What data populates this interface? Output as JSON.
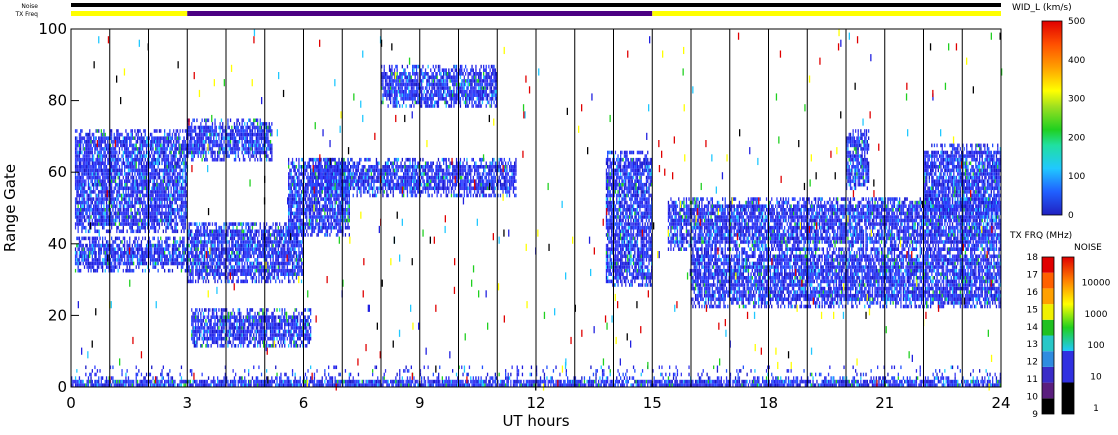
{
  "chart_data": {
    "type": "heatmap",
    "xlabel": "UT hours",
    "ylabel": "Range Gate",
    "xlim": [
      0,
      24
    ],
    "ylim": [
      0,
      100
    ],
    "x_ticks": [
      "0",
      "3",
      "6",
      "9",
      "12",
      "15",
      "18",
      "21",
      "24"
    ],
    "y_ticks": [
      "0",
      "20",
      "40",
      "60",
      "80",
      "100"
    ],
    "hour_grid": true,
    "status_bars": {
      "noise_label": "Noise",
      "txfreq_label": "TX Freq",
      "txfreq_segments": [
        {
          "start": 0,
          "end": 3,
          "color": "#ffff00"
        },
        {
          "start": 3,
          "end": 15,
          "color": "#4b0082"
        },
        {
          "start": 15,
          "end": 24,
          "color": "#ffff00"
        }
      ]
    },
    "width_colorbar": {
      "title": "WID_L (km/s)",
      "ticks": [
        "0",
        "100",
        "200",
        "300",
        "400",
        "500"
      ],
      "range": [
        0,
        500
      ]
    },
    "txfreq_colorbar": {
      "title": "TX FRQ (MHz)",
      "ticks": [
        "9",
        "10",
        "11",
        "12",
        "13",
        "14",
        "15",
        "16",
        "17",
        "18"
      ],
      "colors": [
        "#000000",
        "#5a1e7e",
        "#3a2cc8",
        "#2f8ce0",
        "#28c8c8",
        "#20c020",
        "#f0f000",
        "#ffa000",
        "#ff6000",
        "#e00000"
      ]
    },
    "noise_colorbar": {
      "title": "NOISE",
      "ticks": [
        "1",
        "10",
        "100",
        "1000",
        "10000"
      ]
    },
    "scatter_regions": [
      {
        "t0": 0.1,
        "t1": 3.0,
        "g0": 43,
        "g1": 72
      },
      {
        "t0": 0.1,
        "t1": 3.0,
        "g0": 32,
        "g1": 42
      },
      {
        "t0": 3.0,
        "t1": 6.0,
        "g0": 29,
        "g1": 46
      },
      {
        "t0": 3.0,
        "t1": 5.2,
        "g0": 63,
        "g1": 75
      },
      {
        "t0": 3.1,
        "t1": 6.2,
        "g0": 11,
        "g1": 22
      },
      {
        "t0": 5.6,
        "t1": 7.2,
        "g0": 42,
        "g1": 64
      },
      {
        "t0": 6.2,
        "t1": 11.5,
        "g0": 53,
        "g1": 64
      },
      {
        "t0": 8.0,
        "t1": 11.0,
        "g0": 78,
        "g1": 90
      },
      {
        "t0": 13.8,
        "t1": 15.0,
        "g0": 28,
        "g1": 66
      },
      {
        "t0": 15.4,
        "t1": 24.0,
        "g0": 38,
        "g1": 53
      },
      {
        "t0": 16.0,
        "t1": 24.0,
        "g0": 22,
        "g1": 39
      },
      {
        "t0": 20.0,
        "t1": 20.6,
        "g0": 55,
        "g1": 72
      },
      {
        "t0": 22.0,
        "t1": 24.0,
        "g0": 47,
        "g1": 68
      },
      {
        "t0": 0.0,
        "t1": 24.0,
        "g0": 0,
        "g1": 6
      }
    ]
  }
}
